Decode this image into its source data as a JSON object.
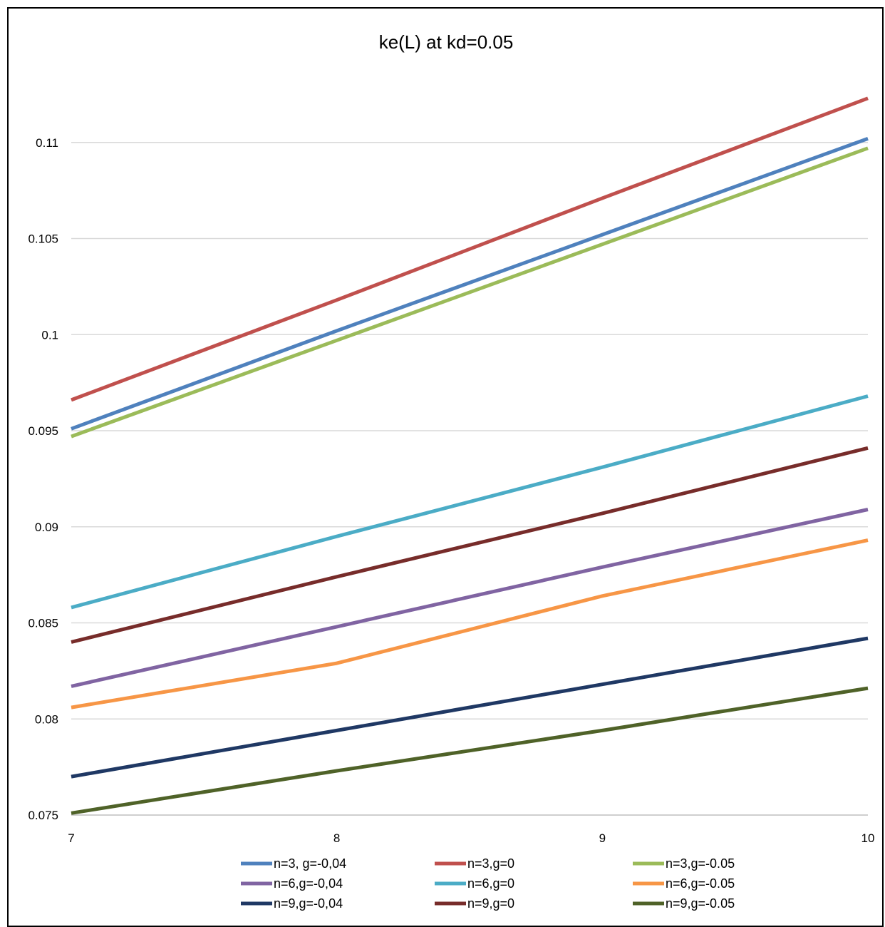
{
  "chart_data": {
    "type": "line",
    "title": "ke(L) at kd=0.05",
    "xlabel": "",
    "ylabel": "",
    "x": [
      7,
      8,
      9,
      10
    ],
    "xlim": [
      7,
      10
    ],
    "ylim": [
      0.075,
      0.115
    ],
    "x_ticks": [
      7,
      8,
      9,
      10
    ],
    "x_tick_labels": [
      "7",
      "8",
      "9",
      "10"
    ],
    "y_ticks": [
      0.075,
      0.08,
      0.085,
      0.09,
      0.095,
      0.1,
      0.105,
      0.11
    ],
    "y_tick_labels": [
      "0.075",
      "0.08",
      "0.085",
      "0.09",
      "0.095",
      "0.1",
      "0.105",
      "0.11"
    ],
    "grid": "horizontal",
    "legend_position": "bottom",
    "series": [
      {
        "name": "n=3, g=-0,04",
        "color": "#4F81BD",
        "values": [
          0.0951,
          0.1002,
          0.1052,
          0.1102
        ]
      },
      {
        "name": "n=3,g=0",
        "color": "#C0504D",
        "values": [
          0.0966,
          0.1018,
          0.1071,
          0.1123
        ]
      },
      {
        "name": "n=3,g=-0.05",
        "color": "#9BBB59",
        "values": [
          0.0947,
          0.0997,
          0.1047,
          0.1097
        ]
      },
      {
        "name": "n=6,g=-0,04",
        "color": "#8064A2",
        "values": [
          0.0817,
          0.0848,
          0.0879,
          0.0909
        ]
      },
      {
        "name": "n=6,g=0",
        "color": "#4BACC6",
        "values": [
          0.0858,
          0.0895,
          0.0931,
          0.0968
        ]
      },
      {
        "name": "n=6,g=-0.05",
        "color": "#F79646",
        "values": [
          0.0806,
          0.0829,
          0.0864,
          0.0893
        ]
      },
      {
        "name": "n=9,g=-0,04",
        "color": "#1F3864",
        "values": [
          0.077,
          0.0794,
          0.0818,
          0.0842
        ]
      },
      {
        "name": "n=9,g=0",
        "color": "#772C2A",
        "values": [
          0.084,
          0.0874,
          0.0907,
          0.0941
        ]
      },
      {
        "name": "n=9,g=-0.05",
        "color": "#4F6228",
        "values": [
          0.0751,
          0.0773,
          0.0794,
          0.0816
        ]
      }
    ]
  }
}
